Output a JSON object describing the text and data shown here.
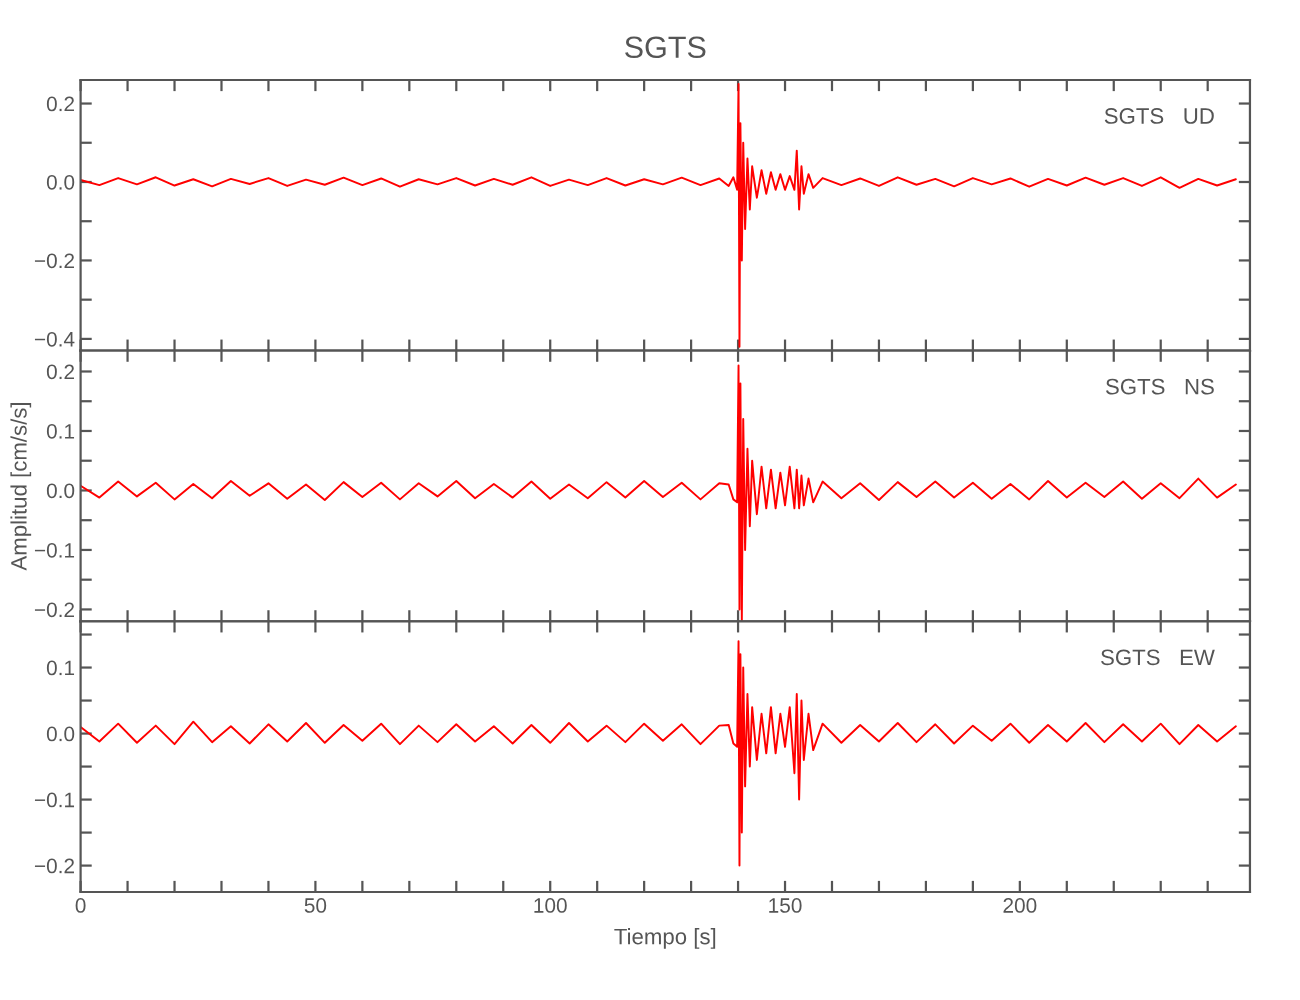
{
  "chart_data": [
    {
      "type": "line",
      "title": "SGTS",
      "annotations": [
        "SGTS   UD"
      ],
      "tick_labels": "y",
      "grid": false,
      "legend": false,
      "xlim": [
        0,
        249
      ],
      "xticks": [
        0,
        {
          "value": 10,
          "label": null
        },
        {
          "value": 20,
          "label": null
        },
        {
          "value": 30,
          "label": null
        },
        {
          "value": 40,
          "label": null
        },
        50,
        {
          "value": 60,
          "label": null
        },
        {
          "value": 70,
          "label": null
        },
        {
          "value": 80,
          "label": null
        },
        {
          "value": 90,
          "label": null
        },
        100,
        {
          "value": 110,
          "label": null
        },
        {
          "value": 120,
          "label": null
        },
        {
          "value": 130,
          "label": null
        },
        {
          "value": 140,
          "label": null
        },
        150,
        {
          "value": 160,
          "label": null
        },
        {
          "value": 170,
          "label": null
        },
        {
          "value": 180,
          "label": null
        },
        {
          "value": 190,
          "label": null
        },
        200,
        {
          "value": 210,
          "label": null
        },
        {
          "value": 220,
          "label": null
        },
        {
          "value": 230,
          "label": null
        },
        {
          "value": 240,
          "label": null
        }
      ],
      "ylim": [
        -0.43,
        0.26
      ],
      "yticks": [
        {
          "value": 0.2,
          "label": "0.2"
        },
        {
          "value": 0.1,
          "label": null
        },
        {
          "value": 0,
          "label": "0.0"
        },
        {
          "value": -0.1,
          "label": null
        },
        {
          "value": -0.2,
          "label": "−0.2"
        },
        {
          "value": -0.3,
          "label": null
        },
        {
          "value": -0.4,
          "label": "−0.4"
        }
      ],
      "series": [
        {
          "color": "#ff0000",
          "x": [
            0,
            4,
            8,
            12,
            16,
            20,
            24,
            28,
            32,
            36,
            40,
            44,
            48,
            52,
            56,
            60,
            64,
            68,
            72,
            76,
            80,
            84,
            88,
            92,
            96,
            100,
            104,
            108,
            112,
            116,
            120,
            124,
            128,
            132,
            136,
            138,
            139,
            139.8,
            140.1,
            140.3,
            140.5,
            140.8,
            141.1,
            141.5,
            142,
            142.5,
            143,
            144,
            145,
            146,
            147,
            148,
            149,
            150,
            151,
            152,
            152.5,
            153,
            153.5,
            154,
            155,
            156,
            158,
            162,
            166,
            170,
            174,
            178,
            182,
            186,
            190,
            194,
            198,
            202,
            206,
            210,
            214,
            218,
            222,
            226,
            230,
            234,
            238,
            242,
            246
          ],
          "values": [
            0.005,
            -0.008,
            0.01,
            -0.006,
            0.012,
            -0.009,
            0.007,
            -0.011,
            0.008,
            -0.005,
            0.01,
            -0.01,
            0.006,
            -0.007,
            0.011,
            -0.008,
            0.009,
            -0.012,
            0.007,
            -0.006,
            0.01,
            -0.009,
            0.008,
            -0.007,
            0.012,
            -0.01,
            0.006,
            -0.008,
            0.01,
            -0.009,
            0.007,
            -0.006,
            0.011,
            -0.008,
            0.009,
            -0.01,
            0.012,
            -0.02,
            0.25,
            -0.42,
            0.15,
            -0.2,
            0.1,
            -0.12,
            0.06,
            -0.07,
            0.04,
            -0.04,
            0.03,
            -0.03,
            0.025,
            -0.02,
            0.02,
            -0.02,
            0.015,
            -0.02,
            0.08,
            -0.07,
            0.04,
            -0.03,
            0.02,
            -0.015,
            0.01,
            -0.008,
            0.009,
            -0.01,
            0.012,
            -0.007,
            0.008,
            -0.011,
            0.01,
            -0.006,
            0.009,
            -0.012,
            0.008,
            -0.009,
            0.011,
            -0.007,
            0.01,
            -0.01,
            0.012,
            -0.015,
            0.008,
            -0.009,
            0.007
          ]
        }
      ]
    },
    {
      "type": "line",
      "ylabel": "Amplitud [cm/s/s]",
      "annotations": [
        "SGTS   NS"
      ],
      "tick_labels": "y",
      "grid": false,
      "legend": false,
      "xlim": [
        0,
        249
      ],
      "xticks": [
        0,
        {
          "value": 10,
          "label": null
        },
        {
          "value": 20,
          "label": null
        },
        {
          "value": 30,
          "label": null
        },
        {
          "value": 40,
          "label": null
        },
        50,
        {
          "value": 60,
          "label": null
        },
        {
          "value": 70,
          "label": null
        },
        {
          "value": 80,
          "label": null
        },
        {
          "value": 90,
          "label": null
        },
        100,
        {
          "value": 110,
          "label": null
        },
        {
          "value": 120,
          "label": null
        },
        {
          "value": 130,
          "label": null
        },
        {
          "value": 140,
          "label": null
        },
        150,
        {
          "value": 160,
          "label": null
        },
        {
          "value": 170,
          "label": null
        },
        {
          "value": 180,
          "label": null
        },
        {
          "value": 190,
          "label": null
        },
        200,
        {
          "value": 210,
          "label": null
        },
        {
          "value": 220,
          "label": null
        },
        {
          "value": 230,
          "label": null
        },
        {
          "value": 240,
          "label": null
        }
      ],
      "ylim": [
        -0.22,
        0.235
      ],
      "yticks": [
        {
          "value": 0.2,
          "label": "0.2"
        },
        {
          "value": 0.15,
          "label": null
        },
        {
          "value": 0.1,
          "label": "0.1"
        },
        {
          "value": 0.05,
          "label": null
        },
        {
          "value": 0,
          "label": "0.0"
        },
        {
          "value": -0.05,
          "label": null
        },
        {
          "value": -0.1,
          "label": "−0.1"
        },
        {
          "value": -0.15,
          "label": null
        },
        {
          "value": -0.2,
          "label": "−0.2"
        }
      ],
      "series": [
        {
          "color": "#ff0000",
          "x": [
            0,
            4,
            8,
            12,
            16,
            20,
            24,
            28,
            32,
            36,
            40,
            44,
            48,
            52,
            56,
            60,
            64,
            68,
            72,
            76,
            80,
            84,
            88,
            92,
            96,
            100,
            104,
            108,
            112,
            116,
            120,
            124,
            128,
            132,
            136,
            138,
            139,
            139.8,
            140.1,
            140.3,
            140.5,
            140.8,
            141.1,
            141.5,
            142,
            142.5,
            143,
            144,
            145,
            146,
            147,
            148,
            149,
            150,
            151,
            152,
            152.5,
            153,
            153.5,
            154,
            155,
            156,
            158,
            162,
            166,
            170,
            174,
            178,
            182,
            186,
            190,
            194,
            198,
            202,
            206,
            210,
            214,
            218,
            222,
            226,
            230,
            234,
            238,
            242,
            246
          ],
          "values": [
            0.008,
            -0.012,
            0.015,
            -0.01,
            0.013,
            -0.015,
            0.011,
            -0.013,
            0.016,
            -0.009,
            0.012,
            -0.014,
            0.01,
            -0.016,
            0.014,
            -0.011,
            0.013,
            -0.015,
            0.012,
            -0.01,
            0.016,
            -0.013,
            0.011,
            -0.012,
            0.015,
            -0.014,
            0.01,
            -0.013,
            0.014,
            -0.012,
            0.016,
            -0.011,
            0.013,
            -0.015,
            0.012,
            0.01,
            -0.015,
            -0.02,
            0.21,
            -0.2,
            0.18,
            -0.22,
            0.12,
            -0.1,
            0.07,
            -0.06,
            0.05,
            -0.04,
            0.04,
            -0.03,
            0.035,
            -0.03,
            0.03,
            -0.025,
            0.04,
            -0.03,
            0.035,
            -0.03,
            0.025,
            -0.025,
            0.02,
            -0.02,
            0.015,
            -0.013,
            0.012,
            -0.016,
            0.014,
            -0.011,
            0.015,
            -0.012,
            0.013,
            -0.014,
            0.011,
            -0.015,
            0.016,
            -0.012,
            0.013,
            -0.011,
            0.015,
            -0.014,
            0.012,
            -0.013,
            0.02,
            -0.012,
            0.01
          ]
        }
      ]
    },
    {
      "type": "line",
      "xlabel": "Tiempo [s]",
      "annotations": [
        "SGTS   EW"
      ],
      "grid": false,
      "legend": false,
      "xlim": [
        0,
        249
      ],
      "xticks": [
        0,
        {
          "value": 10,
          "label": null
        },
        {
          "value": 20,
          "label": null
        },
        {
          "value": 30,
          "label": null
        },
        {
          "value": 40,
          "label": null
        },
        50,
        {
          "value": 60,
          "label": null
        },
        {
          "value": 70,
          "label": null
        },
        {
          "value": 80,
          "label": null
        },
        {
          "value": 90,
          "label": null
        },
        100,
        {
          "value": 110,
          "label": null
        },
        {
          "value": 120,
          "label": null
        },
        {
          "value": 130,
          "label": null
        },
        {
          "value": 140,
          "label": null
        },
        150,
        {
          "value": 160,
          "label": null
        },
        {
          "value": 170,
          "label": null
        },
        {
          "value": 180,
          "label": null
        },
        {
          "value": 190,
          "label": null
        },
        200,
        {
          "value": 210,
          "label": null
        },
        {
          "value": 220,
          "label": null
        },
        {
          "value": 230,
          "label": null
        },
        {
          "value": 240,
          "label": null
        }
      ],
      "ylim": [
        -0.24,
        0.17
      ],
      "yticks": [
        {
          "value": 0.15,
          "label": null
        },
        {
          "value": 0.1,
          "label": "0.1"
        },
        {
          "value": 0.05,
          "label": null
        },
        {
          "value": 0,
          "label": "0.0"
        },
        {
          "value": -0.05,
          "label": null
        },
        {
          "value": -0.1,
          "label": "−0.1"
        },
        {
          "value": -0.15,
          "label": null
        },
        {
          "value": -0.2,
          "label": "−0.2"
        }
      ],
      "series": [
        {
          "color": "#ff0000",
          "x": [
            0,
            4,
            8,
            12,
            16,
            20,
            24,
            28,
            32,
            36,
            40,
            44,
            48,
            52,
            56,
            60,
            64,
            68,
            72,
            76,
            80,
            84,
            88,
            92,
            96,
            100,
            104,
            108,
            112,
            116,
            120,
            124,
            128,
            132,
            136,
            138,
            139,
            139.8,
            140.1,
            140.3,
            140.5,
            140.8,
            141.1,
            141.5,
            142,
            142.5,
            143,
            144,
            145,
            146,
            147,
            148,
            149,
            150,
            151,
            152,
            152.5,
            153,
            153.5,
            154,
            155,
            156,
            158,
            162,
            166,
            170,
            174,
            178,
            182,
            186,
            190,
            194,
            198,
            202,
            206,
            210,
            214,
            218,
            222,
            226,
            230,
            234,
            238,
            242,
            246
          ],
          "values": [
            0.01,
            -0.012,
            0.015,
            -0.014,
            0.012,
            -0.016,
            0.018,
            -0.013,
            0.011,
            -0.015,
            0.014,
            -0.012,
            0.016,
            -0.014,
            0.013,
            -0.011,
            0.015,
            -0.016,
            0.012,
            -0.013,
            0.014,
            -0.012,
            0.011,
            -0.015,
            0.013,
            -0.014,
            0.016,
            -0.012,
            0.012,
            -0.013,
            0.015,
            -0.011,
            0.014,
            -0.016,
            0.012,
            0.013,
            -0.015,
            -0.02,
            0.14,
            -0.2,
            0.12,
            -0.15,
            0.1,
            -0.08,
            0.06,
            -0.05,
            0.04,
            -0.04,
            0.03,
            -0.03,
            0.04,
            -0.03,
            0.03,
            -0.02,
            0.04,
            -0.06,
            0.06,
            -0.1,
            0.05,
            -0.04,
            0.03,
            -0.025,
            0.015,
            -0.014,
            0.013,
            -0.012,
            0.016,
            -0.013,
            0.014,
            -0.015,
            0.012,
            -0.011,
            0.015,
            -0.014,
            0.013,
            -0.012,
            0.016,
            -0.013,
            0.014,
            -0.012,
            0.015,
            -0.016,
            0.013,
            -0.012,
            0.011
          ]
        }
      ]
    }
  ]
}
